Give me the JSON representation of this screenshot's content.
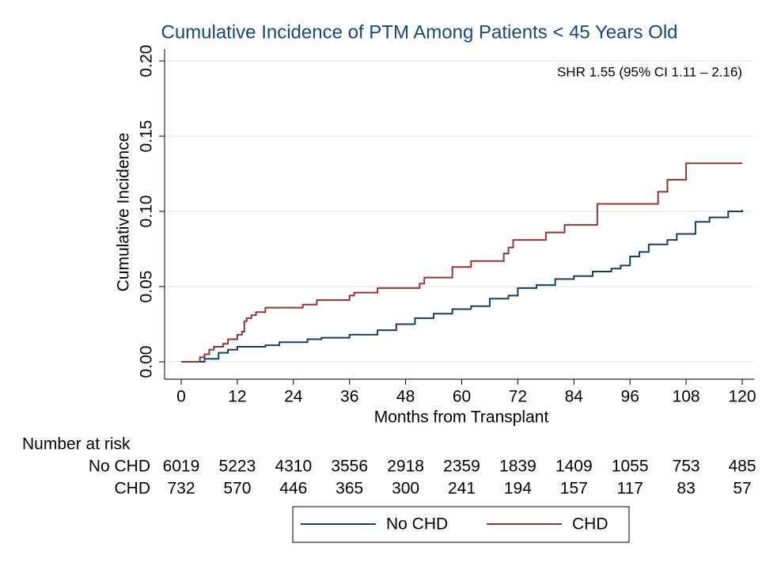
{
  "chart_data": {
    "type": "step",
    "title": "Cumulative Incidence of PTM Among Patients < 45 Years Old",
    "annotation": "SHR 1.55 (95% CI 1.11 – 2.16)",
    "x_label": "Months from Transplant",
    "y_label": "Cumulative Incidence",
    "xlim": [
      0,
      120
    ],
    "xticks": [
      0,
      12,
      24,
      36,
      48,
      60,
      72,
      84,
      96,
      108,
      120
    ],
    "ylim": [
      0,
      0.2
    ],
    "yticks": [
      {
        "value": 0,
        "label": "0.00"
      },
      {
        "value": 0.05,
        "label": "0.05"
      },
      {
        "value": 0.1,
        "label": "0.10"
      },
      {
        "value": 0.15,
        "label": "0.15"
      },
      {
        "value": 0.2,
        "label": "0.20"
      }
    ],
    "grid": true,
    "legend_position": "bottom",
    "series": [
      {
        "name": "No CHD",
        "color": "#1a3f5c",
        "x": [
          0,
          3,
          5,
          8,
          10,
          12,
          18,
          21,
          27,
          30,
          36,
          42,
          46,
          50,
          54,
          58,
          62,
          66,
          70,
          72,
          76,
          80,
          84,
          88,
          92,
          94,
          96,
          98,
          100,
          104,
          106,
          110,
          113,
          117,
          120
        ],
        "values": [
          0,
          0,
          0.002,
          0.006,
          0.008,
          0.01,
          0.011,
          0.013,
          0.015,
          0.016,
          0.018,
          0.021,
          0.025,
          0.029,
          0.032,
          0.035,
          0.037,
          0.042,
          0.044,
          0.049,
          0.051,
          0.055,
          0.057,
          0.06,
          0.062,
          0.064,
          0.07,
          0.073,
          0.078,
          0.081,
          0.085,
          0.093,
          0.096,
          0.1,
          0.101
        ]
      },
      {
        "name": "CHD",
        "color": "#90353b",
        "x": [
          0,
          3,
          4,
          5,
          6,
          7,
          9,
          10,
          12,
          13,
          13.5,
          14,
          15,
          16,
          18,
          26,
          29,
          36,
          37,
          42,
          51,
          52,
          58,
          62,
          69,
          70,
          71,
          78,
          82,
          89,
          102,
          104,
          108,
          120
        ],
        "values": [
          0,
          0,
          0.003,
          0.005,
          0.008,
          0.01,
          0.012,
          0.015,
          0.018,
          0.02,
          0.027,
          0.029,
          0.031,
          0.033,
          0.036,
          0.038,
          0.041,
          0.044,
          0.046,
          0.049,
          0.052,
          0.056,
          0.063,
          0.067,
          0.072,
          0.076,
          0.081,
          0.086,
          0.091,
          0.105,
          0.113,
          0.121,
          0.132,
          0.132
        ]
      }
    ],
    "risk_table": {
      "title": "Number at risk",
      "rows": [
        {
          "name": "No CHD",
          "values": [
            6019,
            5223,
            4310,
            3556,
            2918,
            2359,
            1839,
            1409,
            1055,
            753,
            485
          ]
        },
        {
          "name": "CHD",
          "values": [
            732,
            570,
            446,
            365,
            300,
            241,
            194,
            157,
            117,
            83,
            57
          ]
        }
      ]
    }
  }
}
